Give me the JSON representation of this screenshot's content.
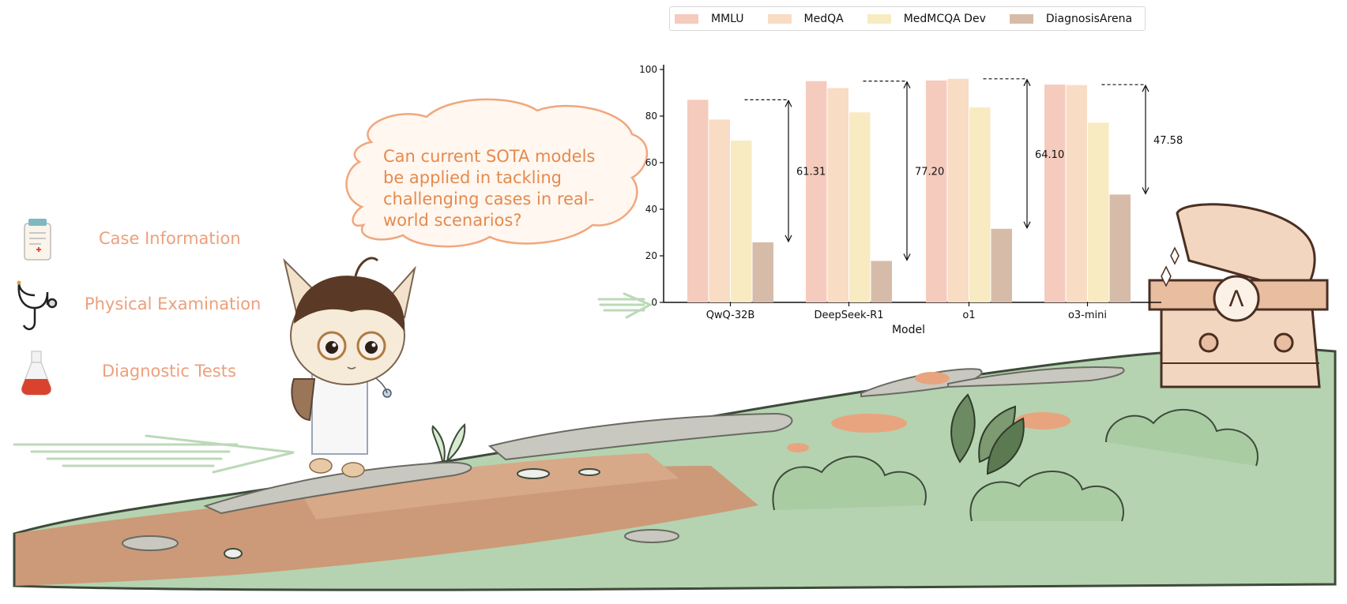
{
  "left_panel": {
    "items": [
      {
        "label": "Case Information",
        "icon": "clipboard-icon"
      },
      {
        "label": "Physical Examination",
        "icon": "stethoscope-icon"
      },
      {
        "label": "Diagnostic Tests",
        "icon": "flask-icon"
      }
    ]
  },
  "speech_bubble": {
    "text": "Can current SOTA models be applied in tackling challenging cases in real-world scenarios?"
  },
  "colors": {
    "side_label": "#eca07c",
    "bubble_text": "#e58a4e",
    "bubble_outline": "#f0a77d",
    "MMLU": "#f5cbbd",
    "MedQA": "#f8dcc4",
    "MedMCQA Dev": "#f8ebc2",
    "DiagnosisArena": "#d6bca8"
  },
  "chart_data": {
    "type": "bar",
    "xlabel": "Model",
    "ylabel": "",
    "ylim": [
      0,
      100
    ],
    "yticks": [
      0,
      20,
      40,
      60,
      80,
      100
    ],
    "legend_position": "top",
    "categories": [
      "QwQ-32B",
      "DeepSeek-R1",
      "o1",
      "o3-mini"
    ],
    "series": [
      {
        "name": "MMLU",
        "values": [
          87,
          95,
          95.3,
          93.5
        ]
      },
      {
        "name": "MedQA",
        "values": [
          78.5,
          92,
          96,
          93.3
        ]
      },
      {
        "name": "MedMCQA Dev",
        "values": [
          69.5,
          81.6,
          83.7,
          77.2
        ]
      },
      {
        "name": "DiagnosisArena",
        "values": [
          25.8,
          17.8,
          31.6,
          46.3
        ]
      }
    ],
    "gap_annotations": [
      {
        "category": "QwQ-32B",
        "label": "61.31"
      },
      {
        "category": "DeepSeek-R1",
        "label": "77.20"
      },
      {
        "category": "o1",
        "label": "64.10"
      },
      {
        "category": "o3-mini",
        "label": "47.58"
      }
    ]
  }
}
